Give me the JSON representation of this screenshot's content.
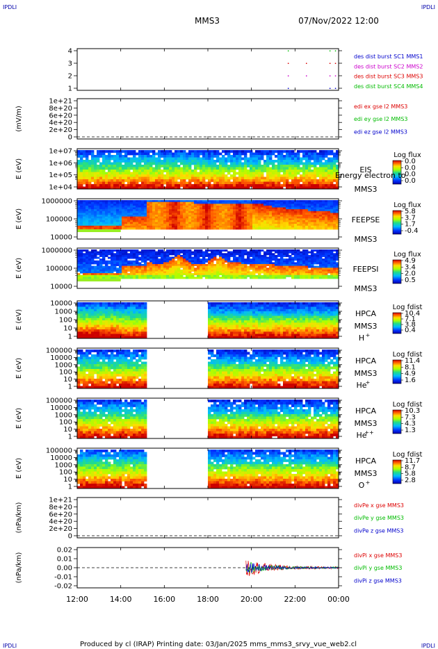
{
  "header": {
    "corner_left": "IPDLI",
    "corner_right": "IPDLI",
    "title": "MMS3",
    "datetime": "07/Nov/2022 12:00"
  },
  "footer": {
    "text": "Produced by cl (IRAP)   Printing date: 03/Jan/2025   mms_mms3_srvy_vue_web2.cl",
    "corner_left": "IPDLI",
    "corner_right": "IPDLI"
  },
  "colors": {
    "mms1": "#0000cc",
    "mms2": "#cc00cc",
    "mms3": "#dd0000",
    "mms4": "#00bb00"
  },
  "chart_data": {
    "x_ticks": [
      "12:00",
      "14:00",
      "16:00",
      "18:00",
      "20:00",
      "22:00",
      "00:00"
    ],
    "xlim": [
      "12:00",
      "00:00"
    ],
    "panels": [
      {
        "type": "scatter",
        "ylabel": "",
        "y_ticks": [
          "4",
          "3",
          "2",
          "1"
        ],
        "ylim": [
          0.5,
          4.5
        ],
        "legend": [
          {
            "text": "des dist burst SC1 MMS1",
            "color": "#0000cc"
          },
          {
            "text": "des dist burst SC2 MMS2",
            "color": "#cc00cc"
          },
          {
            "text": "des dist burst SC3 MMS3",
            "color": "#dd0000"
          },
          {
            "text": "des dist burst SC4 MMS4",
            "color": "#00bb00"
          }
        ],
        "series": [
          {
            "name": "des dist burst SC1 MMS1",
            "y": 1,
            "x": [
              "21:40",
              "23:35",
              "23:50"
            ]
          },
          {
            "name": "des dist burst SC2 MMS2",
            "y": 2,
            "x": [
              "21:40",
              "22:30",
              "23:35",
              "23:50"
            ]
          },
          {
            "name": "des dist burst SC3 MMS3",
            "y": 3,
            "x": [
              "21:40",
              "22:30",
              "23:35",
              "23:50"
            ]
          },
          {
            "name": "des dist burst SC4 MMS4",
            "y": 4,
            "x": [
              "21:40",
              "23:35",
              "23:50"
            ]
          }
        ]
      },
      {
        "type": "line",
        "ylabel": "(mV/m)",
        "y_ticks": [
          "1e+21",
          "8e+20",
          "6e+20",
          "4e+20",
          "2e+20",
          "0"
        ],
        "ylim": [
          0,
          1e+21
        ],
        "dashed_zero": true,
        "legend": [
          {
            "text": "edi ex gse l2 MMS3",
            "color": "#dd0000"
          },
          {
            "text": "edi ey gse l2 MMS3",
            "color": "#00bb00"
          },
          {
            "text": "edi ez gse l2 MMS3",
            "color": "#0000cc"
          }
        ]
      },
      {
        "type": "heatmap",
        "ylabel": "E (eV)",
        "y_ticks": [
          "1e+07",
          "1e+06",
          "1e+05",
          "1e+04"
        ],
        "scale": "log",
        "instrument": [
          "EIS",
          "MMS3"
        ],
        "colorbar_title": "Log flux",
        "colorbar_ticks": [
          "0.0",
          "0.0",
          "0.0",
          "0.0"
        ],
        "overlay_text": "Energy electron to"
      },
      {
        "type": "heatmap",
        "ylabel": "E (eV)",
        "y_ticks": [
          "1000000",
          "100000",
          "10000"
        ],
        "scale": "log",
        "instrument": [
          "FEEPSE",
          "MMS3"
        ],
        "colorbar_title": "Log flux",
        "colorbar_ticks": [
          "5.8",
          "3.7",
          "1.7",
          "-0.4"
        ]
      },
      {
        "type": "heatmap",
        "ylabel": "E (eV)",
        "y_ticks": [
          "1000000",
          "100000",
          "10000"
        ],
        "scale": "log",
        "instrument": [
          "FEEPSI",
          "MMS3"
        ],
        "colorbar_title": "Log flux",
        "colorbar_ticks": [
          "4.9",
          "3.4",
          "2.0",
          "0.5"
        ]
      },
      {
        "type": "heatmap",
        "ylabel": "E (eV)",
        "y_ticks": [
          "10000",
          "1000",
          "100",
          "10",
          "1"
        ],
        "scale": "log",
        "instrument": [
          "HPCA",
          "MMS3"
        ],
        "species": "H",
        "charge": "+",
        "colorbar_title": "Log fdist",
        "colorbar_ticks": [
          "10.4",
          "7.1",
          "3.8",
          "0.4"
        ],
        "data_gap": [
          "15:15",
          "17:55"
        ]
      },
      {
        "type": "heatmap",
        "ylabel": "E (eV)",
        "y_ticks": [
          "100000",
          "10000",
          "1000",
          "100",
          "10",
          "1"
        ],
        "scale": "log",
        "instrument": [
          "HPCA",
          "MMS3"
        ],
        "species": "He",
        "charge": "+",
        "colorbar_title": "Log fdist",
        "colorbar_ticks": [
          "11.4",
          "8.1",
          "4.9",
          "1.6"
        ],
        "data_gap": [
          "15:15",
          "17:55"
        ]
      },
      {
        "type": "heatmap",
        "ylabel": "E (eV)",
        "y_ticks": [
          "100000",
          "10000",
          "1000",
          "100",
          "10",
          "1"
        ],
        "scale": "log",
        "instrument": [
          "HPCA",
          "MMS3"
        ],
        "species": "He",
        "charge": "++",
        "colorbar_title": "Log fdist",
        "colorbar_ticks": [
          "10.3",
          "7.3",
          "4.3",
          "1.3"
        ],
        "data_gap": [
          "15:15",
          "17:55"
        ]
      },
      {
        "type": "heatmap",
        "ylabel": "E (eV)",
        "y_ticks": [
          "100000",
          "10000",
          "1000",
          "100",
          "10",
          "1"
        ],
        "scale": "log",
        "instrument": [
          "HPCA",
          "MMS3"
        ],
        "species": "O",
        "charge": "+",
        "colorbar_title": "Log fdist",
        "colorbar_ticks": [
          "11.7",
          "8.7",
          "5.8",
          "2.8"
        ],
        "data_gap": [
          "15:15",
          "17:55"
        ]
      },
      {
        "type": "line",
        "ylabel": "(nPa/km)",
        "y_ticks": [
          "1e+21",
          "8e+20",
          "6e+20",
          "4e+20",
          "2e+20",
          "0"
        ],
        "ylim": [
          0,
          1e+21
        ],
        "dashed_zero": true,
        "legend": [
          {
            "text": "divPe x gse MMS3",
            "color": "#dd0000"
          },
          {
            "text": "divPe y gse MMS3",
            "color": "#00bb00"
          },
          {
            "text": "divPe z gse MMS3",
            "color": "#0000cc"
          }
        ]
      },
      {
        "type": "line",
        "ylabel": "(nPa/km)",
        "y_ticks": [
          "0.02",
          "0.01",
          "0.00",
          "-0.01",
          "-0.02"
        ],
        "ylim": [
          -0.02,
          0.02
        ],
        "dashed_zero": true,
        "data_start": "19:45",
        "legend": [
          {
            "text": "divPi x gse MMS3",
            "color": "#dd0000"
          },
          {
            "text": "divPi y gse MMS3",
            "color": "#00bb00"
          },
          {
            "text": "divPi z gse MMS3",
            "color": "#0000cc"
          }
        ],
        "series": [
          {
            "name": "divPi x gse MMS3",
            "color": "#dd0000",
            "amplitude": 0.01
          },
          {
            "name": "divPi y gse MMS3",
            "color": "#00bb00",
            "amplitude": 0.007
          },
          {
            "name": "divPi z gse MMS3",
            "color": "#0000cc",
            "amplitude": 0.006
          }
        ]
      }
    ]
  }
}
